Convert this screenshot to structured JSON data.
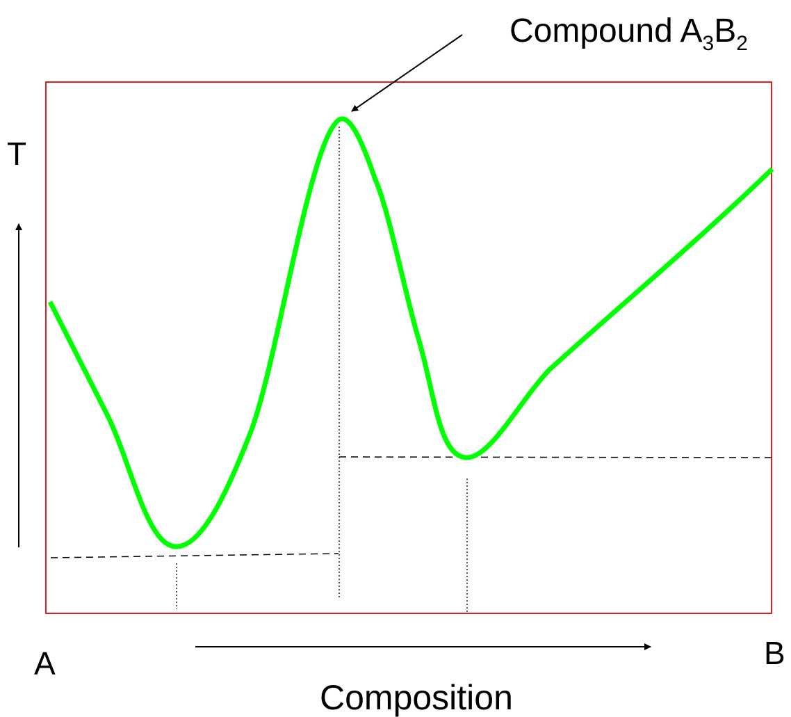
{
  "labels": {
    "y_axis": "T",
    "left_end": "A",
    "right_end": "B",
    "x_axis": "Composition",
    "compound_prefix": "Compound A",
    "compound_sub_a": "3",
    "compound_mid": "B",
    "compound_sub_b": "2"
  },
  "colors": {
    "frame": "#e02020",
    "curve": "#00ff00",
    "lines": "#000000"
  }
}
